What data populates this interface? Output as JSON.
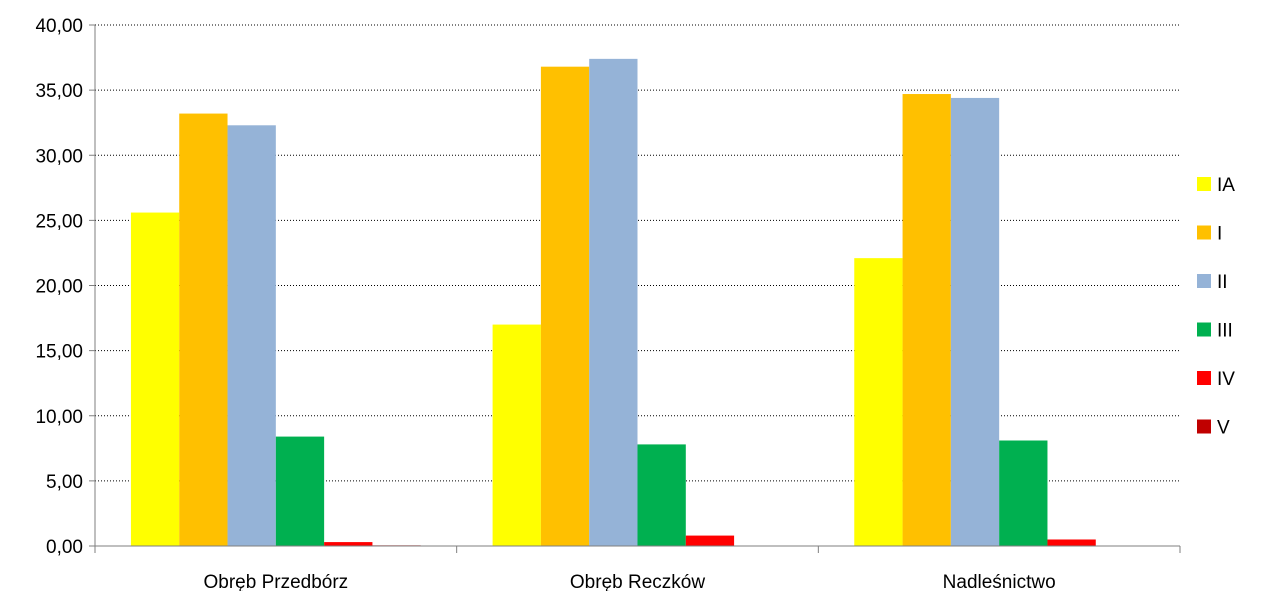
{
  "chart_data": {
    "type": "bar",
    "categories": [
      "Obręb Przedbórz",
      "Obręb Reczków",
      "Nadleśnictwo"
    ],
    "series": [
      {
        "name": "IA",
        "color": "#FFFF00",
        "values": [
          25.6,
          17.0,
          22.1
        ]
      },
      {
        "name": "I",
        "color": "#FFC000",
        "values": [
          33.2,
          36.8,
          34.7
        ]
      },
      {
        "name": "II",
        "color": "#95B3D7",
        "values": [
          32.3,
          37.4,
          34.4
        ]
      },
      {
        "name": "III",
        "color": "#00B050",
        "values": [
          8.4,
          7.8,
          8.1
        ]
      },
      {
        "name": "IV",
        "color": "#FF0000",
        "values": [
          0.3,
          0.8,
          0.5
        ]
      },
      {
        "name": "V",
        "color": "#C00000",
        "values": [
          0.05,
          0.0,
          0.03
        ]
      }
    ],
    "y_ticks": [
      "0,00",
      "5,00",
      "10,00",
      "15,00",
      "20,00",
      "25,00",
      "30,00",
      "35,00",
      "40,00"
    ],
    "ylim": [
      0,
      40
    ],
    "grid": "horizontal dotted",
    "legend_position": "right"
  }
}
